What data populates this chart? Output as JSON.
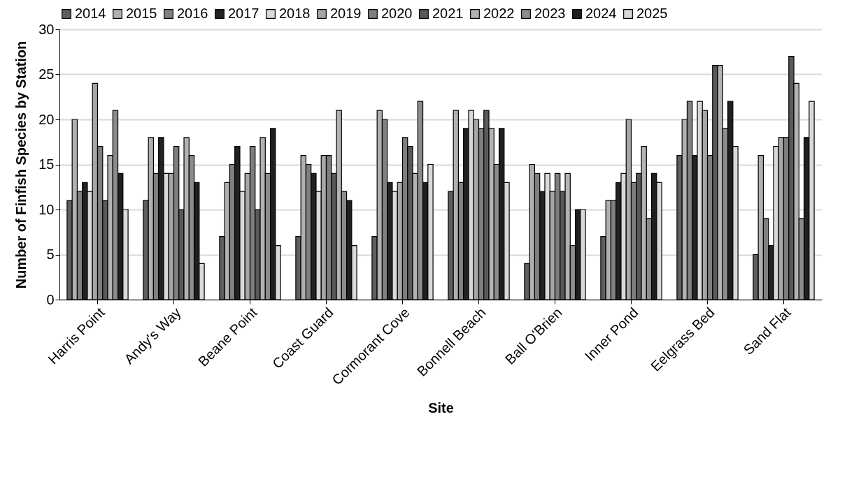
{
  "chart_data": {
    "type": "bar",
    "xlabel": "Site",
    "ylabel": "Number of Finfish Species by Station",
    "categories": [
      "Harris Point",
      "Andy's Way",
      "Beane Point",
      "Coast Guard",
      "Cormorant Cove",
      "Bonnell Beach",
      "Ball O'Brien",
      "Inner Pond",
      "Eelgrass Bed",
      "Sand Flat"
    ],
    "series": [
      {
        "name": "2014",
        "color": "#5f5f5f",
        "values": [
          11,
          11,
          7,
          7,
          7,
          12,
          4,
          7,
          16,
          5
        ]
      },
      {
        "name": "2015",
        "color": "#b0b0b0",
        "values": [
          20,
          18,
          13,
          16,
          21,
          21,
          15,
          11,
          20,
          16
        ]
      },
      {
        "name": "2016",
        "color": "#808080",
        "values": [
          12,
          14,
          15,
          15,
          20,
          13,
          14,
          11,
          22,
          9
        ]
      },
      {
        "name": "2017",
        "color": "#222222",
        "values": [
          13,
          18,
          17,
          14,
          13,
          19,
          12,
          13,
          16,
          6
        ]
      },
      {
        "name": "2018",
        "color": "#d9d9d9",
        "values": [
          12,
          14,
          12,
          12,
          12,
          21,
          14,
          14,
          22,
          17
        ]
      },
      {
        "name": "2019",
        "color": "#a6a6a6",
        "values": [
          24,
          14,
          14,
          16,
          13,
          20,
          12,
          20,
          21,
          18
        ]
      },
      {
        "name": "2020",
        "color": "#7f7f7f",
        "values": [
          17,
          17,
          17,
          16,
          18,
          19,
          14,
          13,
          16,
          18
        ]
      },
      {
        "name": "2021",
        "color": "#595959",
        "values": [
          11,
          10,
          10,
          14,
          17,
          21,
          12,
          14,
          26,
          27
        ]
      },
      {
        "name": "2022",
        "color": "#b3b3b3",
        "values": [
          16,
          18,
          18,
          21,
          14,
          19,
          14,
          17,
          26,
          24
        ]
      },
      {
        "name": "2023",
        "color": "#8c8c8c",
        "values": [
          21,
          16,
          14,
          12,
          22,
          15,
          6,
          9,
          19,
          9
        ]
      },
      {
        "name": "2024",
        "color": "#1f1f1f",
        "values": [
          14,
          13,
          19,
          11,
          13,
          19,
          10,
          14,
          22,
          18
        ]
      },
      {
        "name": "2025",
        "color": "#d9d9d9",
        "values": [
          10,
          4,
          6,
          6,
          15,
          13,
          10,
          13,
          17,
          22
        ]
      }
    ],
    "ylim": [
      0,
      30
    ],
    "yticks": [
      0,
      5,
      10,
      15,
      20,
      25,
      30
    ],
    "grid": "y",
    "legend": "top"
  }
}
